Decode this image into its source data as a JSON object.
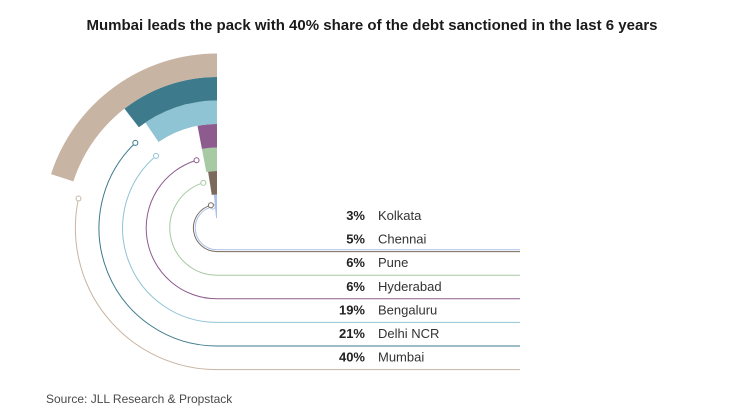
{
  "title": "Mumbai leads the pack with 40% share of the debt sanctioned in the last 6 years",
  "source": "Source: JLL Research & Propstack",
  "chart_data": {
    "type": "radial bar",
    "unit": "%",
    "series": [
      {
        "name": "Kolkata",
        "value": 3,
        "label": "3%",
        "color": "#a9c1e8"
      },
      {
        "name": "Chennai",
        "value": 5,
        "label": "5%",
        "color": "#7b6a5c"
      },
      {
        "name": "Pune",
        "value": 6,
        "label": "6%",
        "color": "#a7c9a3"
      },
      {
        "name": "Hyderabad",
        "value": 6,
        "label": "6%",
        "color": "#8d5b8e"
      },
      {
        "name": "Bengaluru",
        "value": 19,
        "label": "19%",
        "color": "#8fc4d4"
      },
      {
        "name": "Delhi NCR",
        "value": 21,
        "label": "21%",
        "color": "#3d7a8b"
      },
      {
        "name": "Mumbai",
        "value": 40,
        "label": "40%",
        "color": "#c8b4a2"
      }
    ]
  }
}
